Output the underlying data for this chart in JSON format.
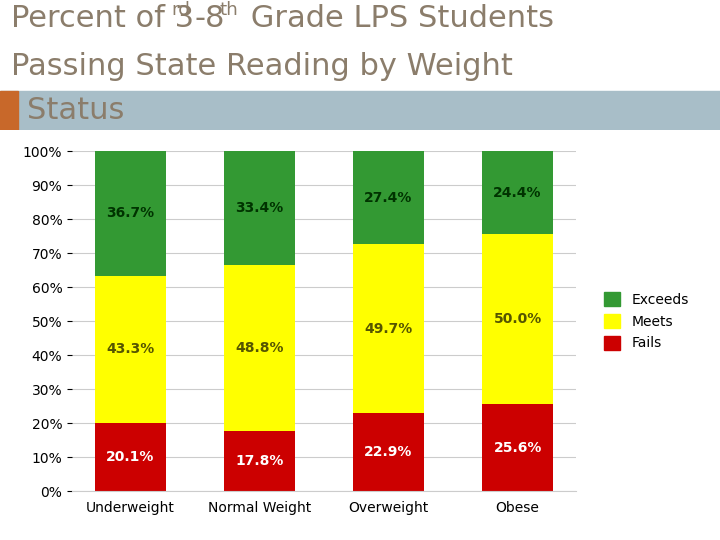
{
  "categories": [
    "Underweight",
    "Normal Weight",
    "Overweight",
    "Obese"
  ],
  "fails": [
    20.1,
    17.8,
    22.9,
    25.6
  ],
  "meets": [
    43.3,
    48.8,
    49.7,
    50.0
  ],
  "exceeds": [
    36.7,
    33.4,
    27.4,
    24.4
  ],
  "fails_color": "#cc0000",
  "meets_color": "#ffff00",
  "exceeds_color": "#339933",
  "title_color": "#8B7D6B",
  "header_bar_color": "#a8bec8",
  "orange_bar_color": "#c8682a",
  "title_fontsize": 22,
  "label_fontsize": 10,
  "tick_fontsize": 10,
  "ylim": [
    0,
    100
  ],
  "background_color": "#ffffff",
  "meets_label_color": "#555500",
  "exceeds_label_color": "#003300",
  "fails_label_color": "#ffffff"
}
